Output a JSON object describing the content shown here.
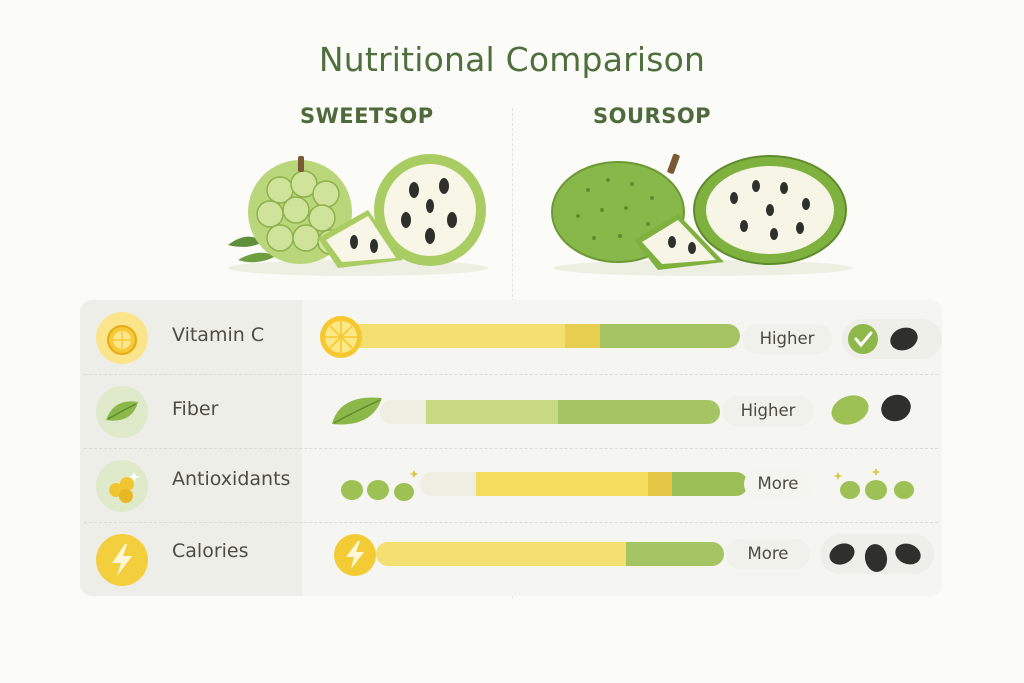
{
  "title": "Nutritional Comparison",
  "columns": {
    "left": "SWEETSOP",
    "right": "SOURSOP"
  },
  "colors": {
    "title": "#4f6f3e",
    "yellow": "#f3dc5e",
    "green": "#9fc15a",
    "dark_seed": "#2f2f2c"
  },
  "rows": [
    {
      "label": "Vitamin C",
      "comparison": "Higher",
      "icon": "lemon-icon",
      "end_icon": "check-icon"
    },
    {
      "label": "Fiber",
      "comparison": "Higher",
      "icon": "leaf-icon",
      "end_icon": "seed-icon"
    },
    {
      "label": "Antioxidants",
      "comparison": "More",
      "icon": "berries-icon",
      "end_icon": "berries-icon"
    },
    {
      "label": "Calories",
      "comparison": "More",
      "icon": "lightning-icon",
      "end_icon": "seeds-icon"
    }
  ]
}
